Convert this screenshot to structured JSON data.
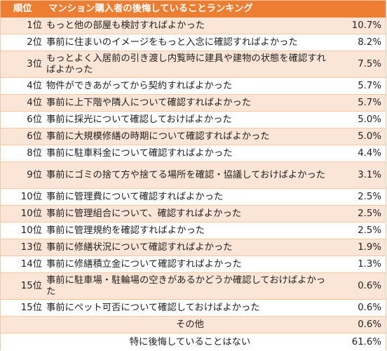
{
  "header": {
    "rank": "順位",
    "item": "マンション購入者の後悔していることランキング",
    "pct": ""
  },
  "rows": [
    {
      "rank": "1位",
      "item": "もっと他の部屋も検討すればよかった",
      "pct": "10.7%"
    },
    {
      "rank": "2位",
      "item": "事前に住まいのイメージをもっと入念に確認すればよかった",
      "pct": "8.2%"
    },
    {
      "rank": "3位",
      "item": "もっとよく入居前の引き渡し内覧時に建具や建物の状態を確認すればよかった",
      "pct": "7.5%"
    },
    {
      "rank": "4位",
      "item": "物件ができあがってから契約すればよかった",
      "pct": "5.7%"
    },
    {
      "rank": "4位",
      "item": "事前に上下階や隣人について確認すればよかった",
      "pct": "5.7%"
    },
    {
      "rank": "6位",
      "item": "事前に採光について確認しておけばよかった",
      "pct": "5.0%"
    },
    {
      "rank": "6位",
      "item": "事前に大規模修繕の時期について確認すればよかった",
      "pct": "5.0%"
    },
    {
      "rank": "8位",
      "item": "事前に駐車料金について確認すればよかった",
      "pct": "4.4%"
    },
    {
      "rank": "9位",
      "item": "事前にゴミの捨て方や捨てる場所を確認・協議しておけばよかった",
      "pct": "3.1%"
    },
    {
      "rank": "10位",
      "item": "事前に管理費について確認すればよかった",
      "pct": "2.5%"
    },
    {
      "rank": "10位",
      "item": "事前に管理組合について、確認すればよかった",
      "pct": "2.5%"
    },
    {
      "rank": "10位",
      "item": "事前に管理規約を確認すればよかった",
      "pct": "2.5%"
    },
    {
      "rank": "13位",
      "item": "事前に修繕状況について確認すればよかった",
      "pct": "1.9%"
    },
    {
      "rank": "14位",
      "item": "事前に修繕積立金について確認すればよかった",
      "pct": "1.3%"
    },
    {
      "rank": "15位",
      "item": "事前に駐車場・駐輪場の空きがあるかどうか確認しておけばよかった",
      "pct": "0.6%"
    },
    {
      "rank": "15位",
      "item": "事前にペット可否について確認しておけばよかった",
      "pct": "0.6%"
    },
    {
      "rank": "",
      "item": "その他",
      "pct": "0.6%"
    },
    {
      "rank": "",
      "item": "特に後悔していることはない",
      "pct": "61.6%"
    }
  ]
}
